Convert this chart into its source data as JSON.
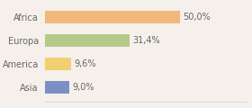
{
  "categories": [
    "Africa",
    "Europa",
    "America",
    "Asia"
  ],
  "values": [
    50.0,
    31.4,
    9.6,
    9.0
  ],
  "labels": [
    "50,0%",
    "31,4%",
    "9,6%",
    "9,0%"
  ],
  "bar_colors": [
    "#f0b87a",
    "#b5c98a",
    "#f0d070",
    "#7b8fc4"
  ],
  "background_color": "#f5f0eb",
  "xlim": [
    0,
    75
  ],
  "bar_height": 0.55,
  "label_fontsize": 7,
  "tick_fontsize": 7
}
